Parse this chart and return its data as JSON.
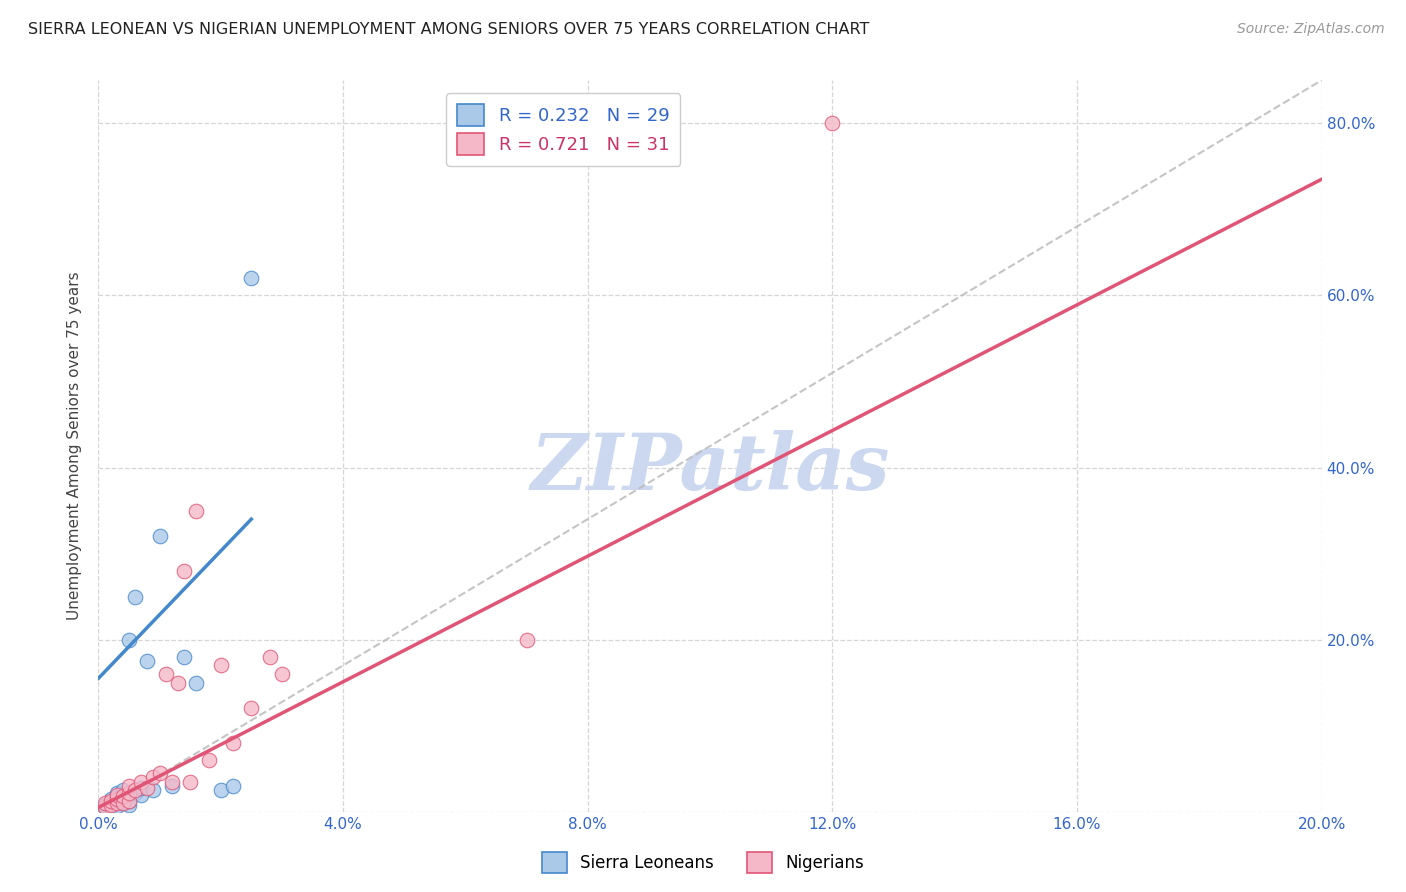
{
  "title": "SIERRA LEONEAN VS NIGERIAN UNEMPLOYMENT AMONG SENIORS OVER 75 YEARS CORRELATION CHART",
  "source": "Source: ZipAtlas.com",
  "ylabel": "Unemployment Among Seniors over 75 years",
  "xlim": [
    0.0,
    0.2
  ],
  "ylim": [
    0.0,
    0.85
  ],
  "xticks": [
    0.0,
    0.04,
    0.08,
    0.12,
    0.16,
    0.2
  ],
  "yticks": [
    0.0,
    0.2,
    0.4,
    0.6,
    0.8
  ],
  "right_yticks": [
    0.2,
    0.4,
    0.6,
    0.8
  ],
  "sl_color": "#aac8e8",
  "ng_color": "#f4b8c8",
  "sl_line_color": "#4488cc",
  "ng_line_color": "#e05575",
  "diag_color": "#bbbbbb",
  "sl_R": 0.232,
  "sl_N": 29,
  "ng_R": 0.721,
  "ng_N": 31,
  "watermark": "ZIPatlas",
  "watermark_color": "#ccd8f0",
  "sl_scatter_x": [
    0.001,
    0.001,
    0.002,
    0.002,
    0.002,
    0.003,
    0.003,
    0.003,
    0.003,
    0.004,
    0.004,
    0.004,
    0.004,
    0.005,
    0.005,
    0.005,
    0.006,
    0.006,
    0.007,
    0.007,
    0.008,
    0.009,
    0.01,
    0.012,
    0.014,
    0.016,
    0.02,
    0.022,
    0.025
  ],
  "sl_scatter_y": [
    0.005,
    0.008,
    0.006,
    0.01,
    0.015,
    0.007,
    0.012,
    0.018,
    0.022,
    0.01,
    0.015,
    0.02,
    0.025,
    0.008,
    0.012,
    0.2,
    0.022,
    0.25,
    0.02,
    0.028,
    0.175,
    0.025,
    0.32,
    0.03,
    0.18,
    0.15,
    0.025,
    0.03,
    0.62
  ],
  "ng_scatter_x": [
    0.001,
    0.001,
    0.002,
    0.002,
    0.003,
    0.003,
    0.003,
    0.004,
    0.004,
    0.005,
    0.005,
    0.005,
    0.006,
    0.007,
    0.008,
    0.009,
    0.01,
    0.011,
    0.012,
    0.013,
    0.014,
    0.015,
    0.016,
    0.018,
    0.02,
    0.022,
    0.025,
    0.028,
    0.03,
    0.07,
    0.12
  ],
  "ng_scatter_y": [
    0.005,
    0.01,
    0.008,
    0.012,
    0.01,
    0.015,
    0.02,
    0.01,
    0.018,
    0.012,
    0.022,
    0.03,
    0.025,
    0.035,
    0.028,
    0.04,
    0.045,
    0.16,
    0.035,
    0.15,
    0.28,
    0.035,
    0.35,
    0.06,
    0.17,
    0.08,
    0.12,
    0.18,
    0.16,
    0.2,
    0.8
  ],
  "sl_line_x": [
    0.0,
    0.025
  ],
  "sl_line_y": [
    0.155,
    0.34
  ],
  "ng_line_x": [
    0.0,
    0.2
  ],
  "ng_line_y": [
    0.005,
    0.735
  ],
  "diag_line_x": [
    0.0,
    0.2
  ],
  "diag_line_y": [
    0.0,
    0.85
  ]
}
